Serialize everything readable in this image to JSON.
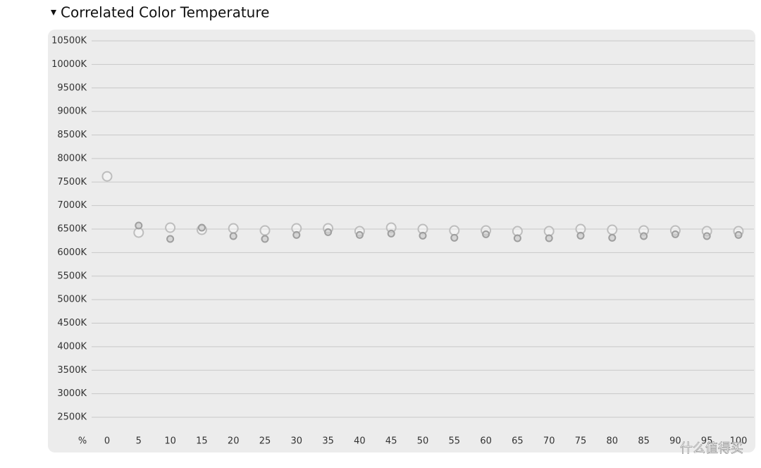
{
  "chart_data": {
    "type": "scatter",
    "title": "Correlated Color Temperature",
    "xlabel": "%",
    "x": [
      0,
      5,
      10,
      15,
      20,
      25,
      30,
      35,
      40,
      45,
      50,
      55,
      60,
      65,
      70,
      75,
      80,
      85,
      90,
      95,
      100
    ],
    "xlim": [
      0,
      100
    ],
    "xticks": [
      0,
      5,
      10,
      15,
      20,
      25,
      30,
      35,
      40,
      45,
      50,
      55,
      60,
      65,
      70,
      75,
      80,
      85,
      90,
      95,
      100
    ],
    "ylim": [
      2500,
      10500
    ],
    "yticks": [
      {
        "value": 2500,
        "label": "2500K"
      },
      {
        "value": 3000,
        "label": "3000K"
      },
      {
        "value": 3500,
        "label": "3500K"
      },
      {
        "value": 4000,
        "label": "4000K"
      },
      {
        "value": 4500,
        "label": "4500K"
      },
      {
        "value": 5000,
        "label": "5000K"
      },
      {
        "value": 5500,
        "label": "5500K"
      },
      {
        "value": 6000,
        "label": "6000K"
      },
      {
        "value": 6500,
        "label": "6500K"
      },
      {
        "value": 7000,
        "label": "7000K"
      },
      {
        "value": 7500,
        "label": "7500K"
      },
      {
        "value": 8000,
        "label": "8000K"
      },
      {
        "value": 8500,
        "label": "8500K"
      },
      {
        "value": 9000,
        "label": "9000K"
      },
      {
        "value": 9500,
        "label": "9500K"
      },
      {
        "value": 10000,
        "label": "10000K"
      },
      {
        "value": 10500,
        "label": "10500K"
      }
    ],
    "grid": true,
    "series": [
      {
        "color": "#bdbdbd",
        "values": [
          7620,
          6425,
          6530,
          6485,
          6515,
          6470,
          6515,
          6515,
          6455,
          6530,
          6500,
          6470,
          6470,
          6455,
          6455,
          6500,
          6485,
          6470,
          6470,
          6455,
          6455
        ]
      },
      {
        "color": "#9e9e9e",
        "values": [
          null,
          6575,
          6290,
          6530,
          6350,
          6290,
          6375,
          6435,
          6375,
          6405,
          6360,
          6315,
          6390,
          6305,
          6305,
          6360,
          6315,
          6350,
          6390,
          6350,
          6375
        ]
      }
    ]
  },
  "watermark": "什么值得买"
}
